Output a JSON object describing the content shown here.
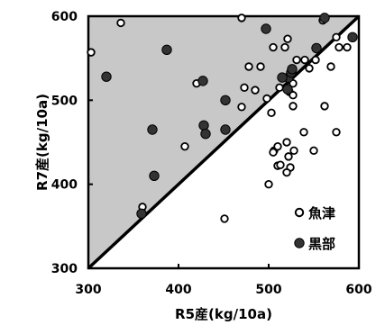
{
  "chart_data": {
    "type": "scatter",
    "xlabel": "R5産(kg/10a)",
    "ylabel": "R7産(kg/10a)",
    "xlim": [
      300,
      600
    ],
    "ylim": [
      300,
      600
    ],
    "x_ticks": [
      "300",
      "400",
      "500",
      "600"
    ],
    "y_ticks": [
      "300",
      "400",
      "500",
      "600"
    ],
    "grid": false,
    "legend_placement": "bottom-right",
    "shaded_region": "above the 1:1 line (R7 > R5)",
    "colors": {
      "shade": "#c8c8c8",
      "line": "#000000",
      "open_marker_fill": "#ffffff",
      "filled_marker": "#333333"
    },
    "series": [
      {
        "name": "魚津",
        "marker": "open-circle",
        "points": [
          [
            336,
            592
          ],
          [
            470,
            598
          ],
          [
            521,
            573
          ],
          [
            560,
            595
          ],
          [
            303,
            557
          ],
          [
            420,
            520
          ],
          [
            478,
            540
          ],
          [
            491,
            540
          ],
          [
            505,
            563
          ],
          [
            518,
            563
          ],
          [
            527,
            520
          ],
          [
            531,
            548
          ],
          [
            540,
            548
          ],
          [
            552,
            548
          ],
          [
            575,
            575
          ],
          [
            578,
            563
          ],
          [
            587,
            563
          ],
          [
            545,
            538
          ],
          [
            569,
            540
          ],
          [
            473,
            515
          ],
          [
            485,
            512
          ],
          [
            498,
            502
          ],
          [
            512,
            515
          ],
          [
            523,
            510
          ],
          [
            527,
            506
          ],
          [
            470,
            492
          ],
          [
            407,
            445
          ],
          [
            452,
            465
          ],
          [
            360,
            373
          ],
          [
            451,
            359
          ],
          [
            503,
            485
          ],
          [
            527,
            493
          ],
          [
            539,
            462
          ],
          [
            575,
            462
          ],
          [
            562,
            493
          ],
          [
            550,
            440
          ],
          [
            510,
            422
          ],
          [
            506,
            440
          ],
          [
            520,
            450
          ],
          [
            510,
            445
          ],
          [
            528,
            440
          ],
          [
            505,
            438
          ],
          [
            522,
            433
          ],
          [
            524,
            420
          ],
          [
            520,
            414
          ],
          [
            500,
            400
          ],
          [
            513,
            423
          ]
        ]
      },
      {
        "name": "黒部",
        "marker": "filled-circle",
        "points": [
          [
            562,
            598
          ],
          [
            387,
            560
          ],
          [
            497,
            585
          ],
          [
            553,
            562
          ],
          [
            593,
            575
          ],
          [
            320,
            528
          ],
          [
            427,
            523
          ],
          [
            522,
            527
          ],
          [
            525,
            533
          ],
          [
            521,
            513
          ],
          [
            452,
            500
          ],
          [
            371,
            465
          ],
          [
            428,
            470
          ],
          [
            430,
            460
          ],
          [
            452,
            465
          ],
          [
            373,
            410
          ],
          [
            359,
            365
          ],
          [
            515,
            527
          ],
          [
            526,
            537
          ]
        ]
      }
    ]
  }
}
